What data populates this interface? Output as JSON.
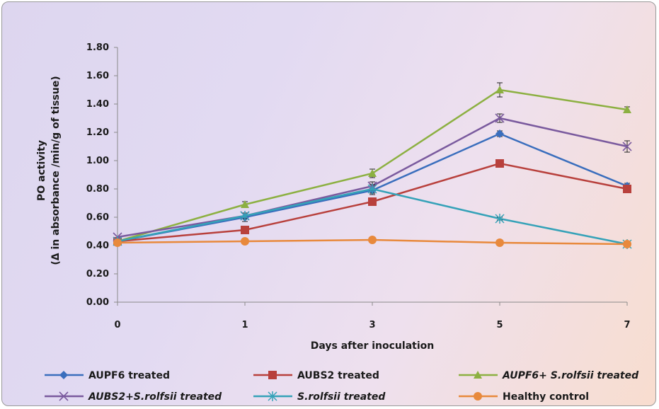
{
  "chart_data": {
    "type": "line",
    "xlabel": "Days after  inoculation",
    "ylabel_line1": "PO activity",
    "ylabel_line2": "(Δ in absorbance /min/g of tissue)",
    "categories": [
      "0",
      "1",
      "3",
      "5",
      "7"
    ],
    "y_ticks": [
      "0.00",
      "0.20",
      "0.40",
      "0.60",
      "0.80",
      "1.00",
      "1.20",
      "1.40",
      "1.60",
      "1.80"
    ],
    "ylim": [
      0,
      1.8
    ],
    "grid": false,
    "legend_position": "bottom",
    "series": [
      {
        "name": "AUPF6 treated",
        "values": [
          0.43,
          0.6,
          0.79,
          1.19,
          0.82
        ],
        "errors": [
          0.0,
          0.03,
          0.03,
          0.02,
          0.02
        ],
        "color": "#3a6ebd",
        "marker": "diamond",
        "italic": false
      },
      {
        "name": "AUBS2 treated",
        "values": [
          0.43,
          0.51,
          0.71,
          0.98,
          0.8
        ],
        "errors": [
          0.0,
          0.02,
          0.02,
          0.01,
          0.02
        ],
        "color": "#b8403c",
        "marker": "square",
        "italic": false
      },
      {
        "name": "AUPF6+ S.rolfsii treated",
        "values": [
          0.43,
          0.69,
          0.91,
          1.5,
          1.36
        ],
        "errors": [
          0.0,
          0.02,
          0.03,
          0.05,
          0.02
        ],
        "color": "#8cb041",
        "marker": "triangle",
        "italic": true
      },
      {
        "name": "AUBS2+S.rolfsii treated",
        "values": [
          0.46,
          0.61,
          0.82,
          1.3,
          1.1
        ],
        "errors": [
          0.0,
          0.02,
          0.03,
          0.03,
          0.04
        ],
        "color": "#7a5a9e",
        "marker": "x",
        "italic": true
      },
      {
        "name": "S.rolfsii treated",
        "values": [
          0.43,
          0.61,
          0.8,
          0.59,
          0.41
        ],
        "errors": [
          0.0,
          0.02,
          0.03,
          0.01,
          0.01
        ],
        "color": "#35a2b8",
        "marker": "star",
        "italic": true
      },
      {
        "name": "Healthy control",
        "values": [
          0.42,
          0.43,
          0.44,
          0.42,
          0.41
        ],
        "errors": [
          0.0,
          0.0,
          0.0,
          0.0,
          0.0
        ],
        "color": "#e8893c",
        "marker": "circle",
        "italic": false
      }
    ]
  }
}
